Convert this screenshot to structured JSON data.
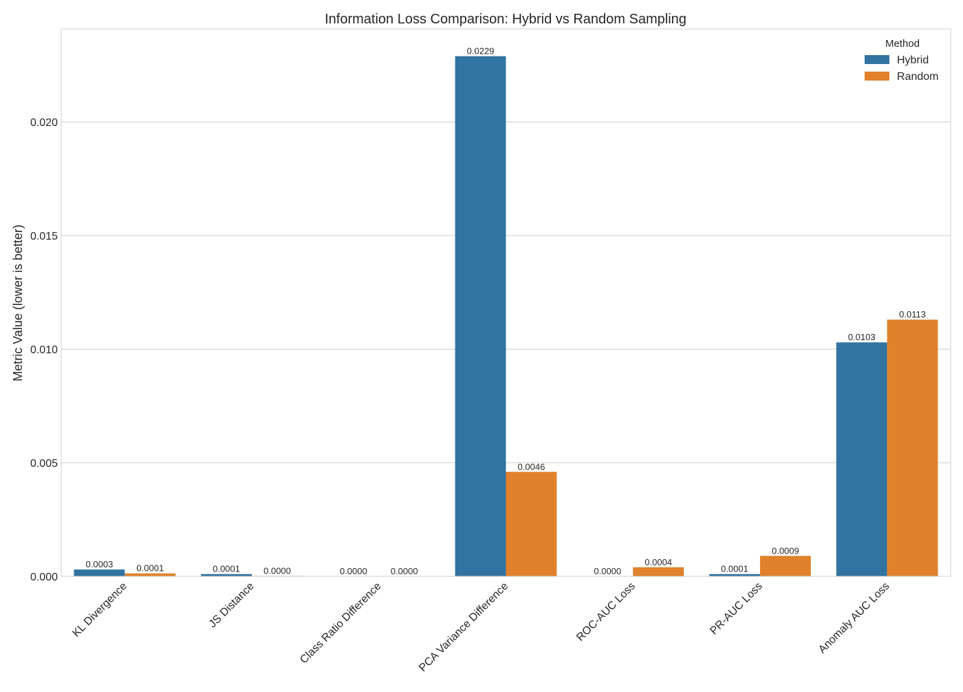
{
  "chart_data": {
    "type": "bar",
    "title": "Information Loss Comparison: Hybrid vs Random Sampling",
    "xlabel": "",
    "ylabel": "Metric Value (lower is better)",
    "categories": [
      "KL Divergence",
      "JS Distance",
      "Class Ratio Difference",
      "PCA Variance Difference",
      "ROC-AUC Loss",
      "PR-AUC Loss",
      "Anomaly AUC Loss"
    ],
    "series": [
      {
        "name": "Hybrid",
        "color": "#3274a1",
        "values": [
          0.0003,
          0.0001,
          0.0,
          0.0229,
          0.0,
          0.0001,
          0.0103
        ],
        "labels": [
          "0.0003",
          "0.0001",
          "0.0000",
          "0.0229",
          "0.0000",
          "0.0001",
          "0.0103"
        ]
      },
      {
        "name": "Random",
        "color": "#e1812c",
        "values": [
          0.00013,
          2e-05,
          0.0,
          0.0046,
          0.0004,
          0.0009,
          0.0113
        ],
        "labels": [
          "0.0001",
          "0.0000",
          "0.0000",
          "0.0046",
          "0.0004",
          "0.0009",
          "0.0113"
        ]
      }
    ],
    "ylim": [
      0,
      0.0241
    ],
    "yticks": [
      "0.000",
      "0.005",
      "0.010",
      "0.015",
      "0.020"
    ],
    "ytick_values": [
      0,
      0.005,
      0.01,
      0.015,
      0.02
    ],
    "legend": {
      "title": "Method",
      "position": "top-right"
    },
    "grid": true
  }
}
